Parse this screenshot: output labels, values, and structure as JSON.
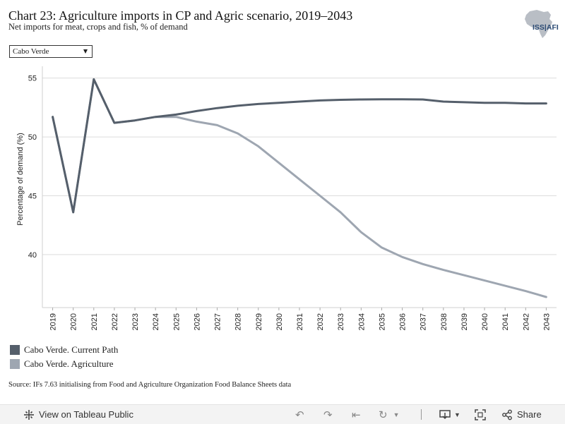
{
  "header": {
    "title": "Chart 23: Agriculture imports in CP and Agric scenario, 2019–2043",
    "subtitle": "Net imports for meat, crops and fish, % of demand",
    "logo_text": "ISS AFRICA",
    "logo_visible_text": "ISS|AFI"
  },
  "filter": {
    "selected": "Cabo Verde"
  },
  "chart_data": {
    "type": "line",
    "title": "",
    "xlabel": "",
    "ylabel": "Percentage of demand (%)",
    "x": [
      "2019",
      "2020",
      "2021",
      "2022",
      "2023",
      "2024",
      "2025",
      "2026",
      "2027",
      "2028",
      "2029",
      "2030",
      "2031",
      "2032",
      "2033",
      "2034",
      "2035",
      "2036",
      "2037",
      "2038",
      "2039",
      "2040",
      "2041",
      "2042",
      "2043"
    ],
    "ylim": [
      35.5,
      56.0
    ],
    "yticks": [
      40,
      45,
      50,
      55
    ],
    "grid": "horizontal",
    "legend_position": "bottom-left",
    "series": [
      {
        "name": "Cabo Verde. Current Path",
        "color": "#555f6b",
        "values": [
          51.7,
          43.6,
          54.9,
          51.2,
          51.4,
          51.7,
          51.9,
          52.2,
          52.45,
          52.65,
          52.8,
          52.9,
          53.0,
          53.1,
          53.15,
          53.18,
          53.2,
          53.2,
          53.18,
          53.0,
          52.95,
          52.9,
          52.9,
          52.85,
          52.85
        ]
      },
      {
        "name": "Cabo Verde. Agriculture",
        "color": "#9ea6b1",
        "values": [
          51.7,
          43.6,
          54.9,
          51.2,
          51.4,
          51.7,
          51.7,
          51.3,
          51.0,
          50.3,
          49.2,
          47.8,
          46.4,
          45.0,
          43.6,
          41.9,
          40.6,
          39.8,
          39.2,
          38.7,
          38.25,
          37.8,
          37.35,
          36.9,
          36.4
        ]
      }
    ]
  },
  "legend": {
    "items": [
      {
        "label": "Cabo Verde. Current Path",
        "color": "#555f6b"
      },
      {
        "label": "Cabo Verde. Agriculture",
        "color": "#9ea6b1"
      }
    ]
  },
  "source": "Source: IFs 7.63 initialising from Food and Agriculture Organization Food Balance Sheets data",
  "toolbar": {
    "view_label": "View on Tableau Public",
    "share_label": "Share",
    "icons": [
      "tableau-logo-icon",
      "undo-icon",
      "redo-icon",
      "revert-icon",
      "refresh-icon",
      "download-icon",
      "fullscreen-icon",
      "share-icon"
    ]
  }
}
